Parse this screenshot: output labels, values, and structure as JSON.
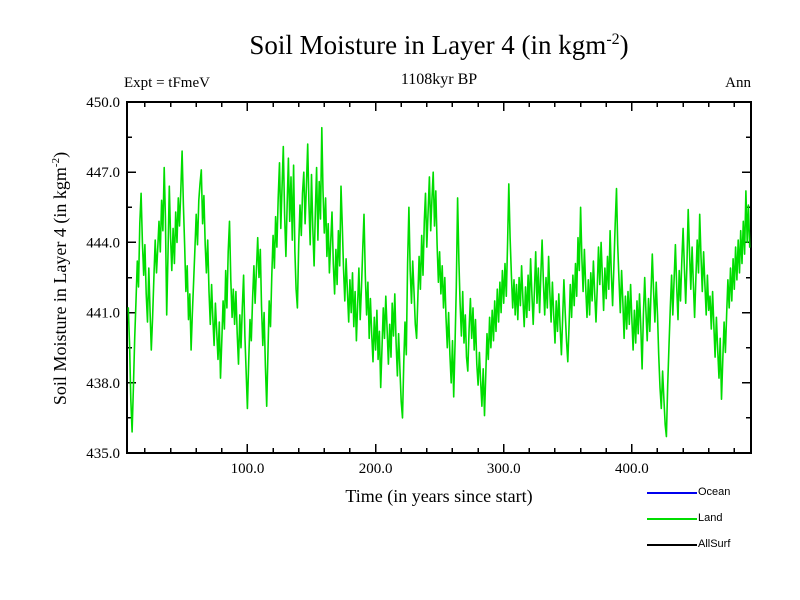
{
  "header": {
    "title_prefix": "Soil Moisture in Layer 4 (in kgm",
    "title_sup": "-2",
    "title_suffix": ")",
    "subtitle": "1108kyr BP",
    "experiment_label": "Expt = tFmeV",
    "period_label": "Ann"
  },
  "axis_titles": {
    "x": "Time (in years since start)",
    "y_prefix": "Soil Moisture in Layer 4 (in kgm",
    "y_sup": "-2",
    "y_suffix": ")"
  },
  "legend": {
    "items": [
      {
        "label": "Ocean",
        "color": "#0000ee"
      },
      {
        "label": "Land",
        "color": "#00dd00"
      },
      {
        "label": "AllSurf",
        "color": "#000000"
      }
    ]
  },
  "chart_data": {
    "type": "line",
    "title": "Soil Moisture in Layer 4 (in kgm-2)",
    "subtitle": "1108kyr BP",
    "xlabel": "Time (in years since start)",
    "ylabel": "Soil Moisture in Layer 4 (in kgm-2)",
    "grid": false,
    "legend_position": "bottom-right",
    "x_axis": {
      "min": 6,
      "max": 493,
      "major_ticks": [
        100,
        200,
        300,
        400
      ],
      "tick_labels": [
        "100.0",
        "200.0",
        "300.0",
        "400.0"
      ],
      "minor_step": 20
    },
    "y_axis": {
      "min": 435,
      "max": 450,
      "major_ticks": [
        435,
        438,
        441,
        444,
        447,
        450
      ],
      "tick_labels": [
        "435.0",
        "438.0",
        "441.0",
        "444.0",
        "447.0",
        "450.0"
      ],
      "minor_step": 1.5
    },
    "series": [
      {
        "name": "Ocean",
        "color": "#0000ee",
        "plotted": false,
        "x_start": 7,
        "x_step": 1,
        "values": []
      },
      {
        "name": "Land",
        "color": "#00dd00",
        "plotted": true,
        "x_start": 7,
        "x_step": 1,
        "values": [
          441.2,
          439.6,
          437.3,
          435.9,
          437.8,
          439.9,
          441.5,
          443.2,
          442.1,
          444.8,
          446.1,
          444.0,
          442.6,
          443.9,
          441.8,
          440.6,
          442.9,
          441.0,
          439.4,
          440.8,
          442.5,
          444.1,
          442.7,
          443.8,
          444.9,
          443.6,
          445.8,
          444.5,
          447.2,
          445.1,
          440.9,
          443.5,
          446.4,
          444.2,
          442.8,
          444.6,
          443.1,
          445.3,
          444.0,
          445.9,
          444.7,
          446.2,
          447.9,
          445.6,
          443.8,
          441.9,
          443.0,
          440.7,
          441.8,
          439.4,
          440.9,
          442.3,
          443.7,
          445.2,
          443.9,
          445.8,
          446.5,
          447.1,
          444.8,
          446.0,
          443.9,
          442.7,
          444.1,
          441.9,
          440.5,
          442.2,
          440.8,
          439.6,
          441.4,
          440.2,
          439.0,
          440.6,
          438.2,
          439.8,
          441.5,
          440.3,
          442.8,
          441.2,
          443.6,
          444.9,
          442.4,
          440.8,
          442.0,
          440.5,
          441.9,
          440.1,
          438.8,
          440.9,
          439.5,
          441.2,
          442.6,
          440.0,
          438.4,
          436.9,
          438.9,
          440.7,
          439.8,
          441.6,
          443.0,
          441.4,
          442.8,
          444.2,
          442.5,
          443.7,
          441.3,
          439.6,
          441.0,
          438.7,
          437.0,
          439.2,
          441.5,
          440.4,
          442.6,
          444.3,
          442.9,
          445.1,
          443.8,
          445.9,
          447.4,
          444.6,
          446.3,
          448.1,
          445.2,
          443.4,
          445.7,
          447.6,
          444.9,
          446.8,
          444.1,
          447.3,
          443.6,
          442.0,
          441.2,
          443.9,
          445.6,
          444.3,
          446.1,
          447.0,
          444.8,
          446.4,
          448.2,
          445.7,
          443.9,
          446.9,
          444.6,
          443.0,
          445.4,
          447.2,
          444.1,
          446.6,
          445.0,
          448.9,
          446.2,
          444.4,
          445.9,
          443.4,
          444.8,
          442.7,
          444.0,
          445.3,
          443.1,
          441.8,
          443.7,
          442.2,
          444.5,
          443.0,
          446.4,
          444.7,
          442.9,
          441.5,
          443.3,
          441.9,
          440.6,
          442.4,
          441.0,
          442.7,
          440.4,
          441.9,
          439.8,
          441.3,
          442.9,
          440.7,
          442.1,
          443.8,
          445.2,
          442.6,
          440.9,
          442.3,
          439.9,
          441.6,
          440.1,
          438.9,
          440.8,
          439.4,
          441.1,
          439.0,
          440.2,
          437.8,
          439.5,
          441.2,
          439.9,
          441.7,
          440.3,
          438.8,
          440.5,
          439.1,
          441.4,
          440.0,
          441.8,
          439.7,
          438.3,
          440.1,
          438.6,
          437.2,
          436.5,
          438.9,
          440.6,
          439.2,
          443.1,
          445.5,
          442.8,
          441.4,
          443.2,
          441.9,
          440.5,
          439.9,
          441.7,
          443.4,
          442.0,
          444.3,
          442.6,
          444.9,
          446.1,
          443.8,
          445.3,
          446.8,
          444.5,
          445.9,
          447.0,
          444.7,
          446.2,
          443.9,
          442.3,
          443.6,
          441.8,
          443.0,
          441.2,
          442.5,
          440.8,
          439.5,
          441.0,
          439.2,
          438.0,
          439.8,
          437.4,
          439.6,
          442.1,
          445.9,
          443.2,
          441.4,
          440.0,
          441.9,
          439.7,
          440.9,
          439.1,
          438.5,
          440.3,
          441.6,
          439.9,
          441.2,
          439.4,
          440.7,
          438.8,
          437.9,
          439.3,
          438.1,
          437.0,
          438.6,
          436.6,
          438.4,
          440.1,
          439.0,
          440.8,
          439.5,
          441.1,
          439.8,
          441.5,
          440.2,
          442.0,
          440.6,
          442.3,
          441.0,
          442.8,
          441.4,
          443.1,
          441.7,
          444.0,
          446.5,
          444.2,
          442.6,
          441.2,
          442.4,
          440.9,
          442.2,
          440.7,
          442.5,
          441.3,
          443.0,
          441.6,
          440.4,
          442.1,
          440.8,
          442.6,
          441.1,
          443.3,
          441.8,
          440.5,
          442.0,
          443.6,
          441.4,
          442.9,
          441.0,
          442.7,
          444.1,
          442.3,
          440.9,
          442.5,
          441.2,
          443.4,
          441.9,
          440.6,
          442.3,
          440.9,
          439.7,
          441.5,
          440.2,
          441.8,
          440.4,
          439.2,
          440.7,
          442.4,
          441.0,
          439.8,
          438.9,
          440.5,
          442.2,
          440.8,
          442.6,
          441.3,
          443.1,
          441.7,
          444.2,
          442.8,
          445.5,
          443.3,
          441.9,
          443.7,
          442.1,
          440.8,
          442.4,
          440.9,
          442.7,
          441.5,
          443.2,
          441.8,
          440.6,
          442.0,
          443.8,
          442.2,
          444.0,
          442.5,
          441.1,
          442.9,
          441.6,
          443.4,
          442.0,
          444.5,
          442.7,
          441.3,
          443.0,
          444.8,
          446.3,
          443.9,
          442.4,
          441.0,
          442.8,
          441.4,
          439.9,
          441.7,
          440.3,
          441.9,
          440.5,
          442.2,
          440.8,
          439.4,
          441.1,
          439.7,
          441.5,
          440.1,
          441.8,
          440.4,
          438.6,
          440.9,
          442.5,
          441.1,
          439.8,
          441.6,
          440.2,
          442.0,
          443.5,
          441.9,
          440.6,
          442.3,
          440.9,
          439.2,
          437.8,
          436.9,
          438.5,
          437.3,
          436.2,
          435.7,
          437.9,
          439.6,
          441.2,
          442.6,
          440.9,
          442.4,
          443.9,
          442.1,
          440.7,
          442.8,
          441.5,
          443.2,
          444.6,
          442.9,
          441.4,
          443.0,
          445.4,
          443.6,
          442.0,
          443.8,
          442.3,
          440.8,
          442.5,
          444.1,
          442.7,
          445.2,
          443.4,
          441.9,
          443.6,
          442.2,
          440.9,
          442.6,
          441.1,
          441.7,
          440.3,
          441.9,
          440.5,
          439.1,
          440.8,
          439.4,
          438.2,
          439.9,
          437.3,
          439.0,
          440.6,
          439.3,
          441.0,
          442.4,
          441.2,
          442.9,
          441.5,
          443.3,
          442.0,
          443.8,
          442.4,
          444.1,
          442.7,
          444.5,
          443.1,
          444.9,
          443.5,
          446.2,
          444.0,
          445.6,
          443.8
        ]
      },
      {
        "name": "AllSurf",
        "color": "#000000",
        "plotted": false,
        "x_start": 7,
        "x_step": 1,
        "values": []
      }
    ]
  }
}
